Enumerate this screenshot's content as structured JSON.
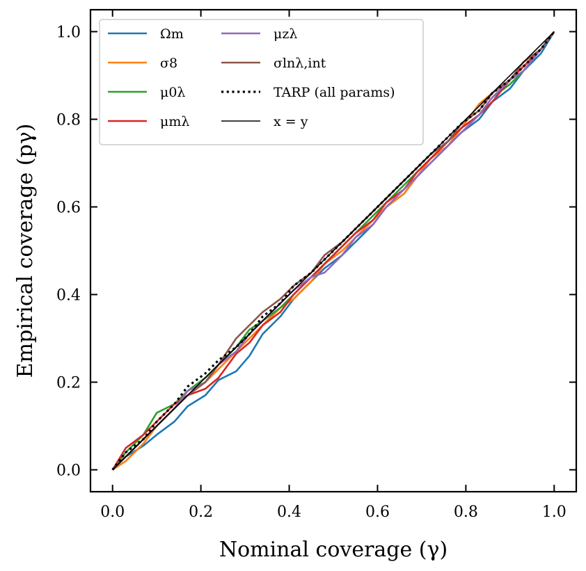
{
  "chart_data": {
    "type": "line",
    "xlabel": "Nominal coverage (γ)",
    "ylabel": "Empirical coverage (pγ)",
    "xlim": [
      -0.05,
      1.05
    ],
    "ylim": [
      -0.05,
      1.05
    ],
    "xticks": [
      0.0,
      0.2,
      0.4,
      0.6,
      0.8,
      1.0
    ],
    "yticks": [
      0.0,
      0.2,
      0.4,
      0.6,
      0.8,
      1.0
    ],
    "xtick_labels": [
      "0.0",
      "0.2",
      "0.4",
      "0.6",
      "0.8",
      "1.0"
    ],
    "ytick_labels": [
      "0.0",
      "0.2",
      "0.4",
      "0.6",
      "0.8",
      "1.0"
    ],
    "legend_position": "top-left",
    "series": [
      {
        "name": "Ωm",
        "color": "#1f77b4",
        "style": "solid",
        "x": [
          0,
          0.03,
          0.07,
          0.1,
          0.14,
          0.17,
          0.21,
          0.24,
          0.28,
          0.31,
          0.34,
          0.38,
          0.41,
          0.45,
          0.48,
          0.52,
          0.55,
          0.59,
          0.62,
          0.66,
          0.69,
          0.72,
          0.76,
          0.79,
          0.83,
          0.86,
          0.9,
          0.93,
          0.97,
          1.0
        ],
        "y": [
          0,
          0.03,
          0.055,
          0.08,
          0.11,
          0.145,
          0.17,
          0.205,
          0.225,
          0.26,
          0.31,
          0.35,
          0.39,
          0.43,
          0.46,
          0.49,
          0.52,
          0.56,
          0.6,
          0.63,
          0.67,
          0.7,
          0.74,
          0.77,
          0.8,
          0.84,
          0.87,
          0.91,
          0.95,
          1.0
        ]
      },
      {
        "name": "σ8",
        "color": "#ff7f0e",
        "style": "solid",
        "x": [
          0,
          0.03,
          0.07,
          0.1,
          0.14,
          0.17,
          0.21,
          0.24,
          0.28,
          0.31,
          0.34,
          0.38,
          0.41,
          0.45,
          0.48,
          0.52,
          0.55,
          0.59,
          0.62,
          0.66,
          0.69,
          0.72,
          0.76,
          0.79,
          0.83,
          0.86,
          0.9,
          0.93,
          0.97,
          1.0
        ],
        "y": [
          0,
          0.02,
          0.06,
          0.1,
          0.14,
          0.17,
          0.2,
          0.23,
          0.27,
          0.3,
          0.33,
          0.37,
          0.39,
          0.43,
          0.47,
          0.5,
          0.53,
          0.57,
          0.6,
          0.63,
          0.67,
          0.71,
          0.74,
          0.78,
          0.835,
          0.86,
          0.89,
          0.92,
          0.96,
          1.0
        ]
      },
      {
        "name": "μ0λ",
        "color": "#2ca02c",
        "style": "solid",
        "x": [
          0,
          0.03,
          0.07,
          0.1,
          0.14,
          0.17,
          0.21,
          0.24,
          0.28,
          0.31,
          0.34,
          0.38,
          0.41,
          0.45,
          0.48,
          0.52,
          0.55,
          0.59,
          0.62,
          0.66,
          0.69,
          0.72,
          0.76,
          0.79,
          0.83,
          0.86,
          0.9,
          0.93,
          0.97,
          1.0
        ],
        "y": [
          0,
          0.04,
          0.08,
          0.13,
          0.15,
          0.18,
          0.21,
          0.24,
          0.28,
          0.32,
          0.34,
          0.37,
          0.4,
          0.44,
          0.47,
          0.51,
          0.54,
          0.58,
          0.61,
          0.65,
          0.68,
          0.71,
          0.75,
          0.78,
          0.81,
          0.85,
          0.88,
          0.91,
          0.96,
          1.0
        ]
      },
      {
        "name": "μmλ",
        "color": "#d62728",
        "style": "solid",
        "x": [
          0,
          0.03,
          0.07,
          0.1,
          0.14,
          0.17,
          0.21,
          0.24,
          0.28,
          0.31,
          0.34,
          0.38,
          0.41,
          0.45,
          0.48,
          0.52,
          0.55,
          0.59,
          0.62,
          0.66,
          0.69,
          0.72,
          0.76,
          0.79,
          0.83,
          0.86,
          0.9,
          0.93,
          0.97,
          1.0
        ],
        "y": [
          0,
          0.05,
          0.08,
          0.11,
          0.15,
          0.17,
          0.185,
          0.21,
          0.265,
          0.29,
          0.33,
          0.36,
          0.4,
          0.44,
          0.47,
          0.51,
          0.54,
          0.57,
          0.61,
          0.64,
          0.68,
          0.71,
          0.75,
          0.78,
          0.81,
          0.84,
          0.89,
          0.92,
          0.96,
          1.0
        ]
      },
      {
        "name": "μzλ",
        "color": "#9467bd",
        "style": "solid",
        "x": [
          0,
          0.03,
          0.07,
          0.1,
          0.14,
          0.17,
          0.21,
          0.24,
          0.28,
          0.31,
          0.34,
          0.38,
          0.41,
          0.45,
          0.48,
          0.52,
          0.55,
          0.59,
          0.62,
          0.66,
          0.69,
          0.72,
          0.76,
          0.79,
          0.83,
          0.86,
          0.9,
          0.93,
          0.97,
          1.0
        ],
        "y": [
          0,
          0.03,
          0.07,
          0.1,
          0.14,
          0.18,
          0.2,
          0.24,
          0.27,
          0.31,
          0.34,
          0.38,
          0.41,
          0.44,
          0.45,
          0.49,
          0.53,
          0.56,
          0.6,
          0.64,
          0.67,
          0.7,
          0.74,
          0.77,
          0.81,
          0.85,
          0.89,
          0.91,
          0.96,
          1.0
        ]
      },
      {
        "name": "σlnλ,int",
        "color": "#8c564b",
        "style": "solid",
        "x": [
          0,
          0.03,
          0.07,
          0.1,
          0.14,
          0.17,
          0.21,
          0.24,
          0.28,
          0.31,
          0.34,
          0.38,
          0.41,
          0.45,
          0.48,
          0.52,
          0.55,
          0.59,
          0.62,
          0.66,
          0.69,
          0.72,
          0.76,
          0.79,
          0.83,
          0.86,
          0.9,
          0.93,
          0.97,
          1.0
        ],
        "y": [
          0,
          0.03,
          0.07,
          0.1,
          0.14,
          0.17,
          0.2,
          0.24,
          0.3,
          0.33,
          0.36,
          0.39,
          0.42,
          0.45,
          0.49,
          0.52,
          0.55,
          0.59,
          0.62,
          0.66,
          0.69,
          0.72,
          0.75,
          0.79,
          0.82,
          0.86,
          0.89,
          0.93,
          0.96,
          1.0
        ]
      },
      {
        "name": "TARP (all params)",
        "color": "#000000",
        "style": "dotted",
        "x": [
          0,
          0.03,
          0.07,
          0.1,
          0.14,
          0.17,
          0.21,
          0.24,
          0.28,
          0.31,
          0.34,
          0.38,
          0.41,
          0.45,
          0.48,
          0.52,
          0.55,
          0.59,
          0.62,
          0.66,
          0.69,
          0.72,
          0.76,
          0.79,
          0.83,
          0.86,
          0.9,
          0.93,
          0.97,
          1.0
        ],
        "y": [
          0,
          0.04,
          0.07,
          0.11,
          0.15,
          0.19,
          0.22,
          0.25,
          0.28,
          0.31,
          0.35,
          0.38,
          0.42,
          0.45,
          0.48,
          0.52,
          0.55,
          0.59,
          0.62,
          0.66,
          0.69,
          0.72,
          0.76,
          0.79,
          0.82,
          0.86,
          0.89,
          0.92,
          0.96,
          1.0
        ]
      },
      {
        "name": "x = y",
        "color": "#000000",
        "style": "thin",
        "x": [
          0,
          1.0
        ],
        "y": [
          0,
          1.0
        ]
      }
    ]
  }
}
